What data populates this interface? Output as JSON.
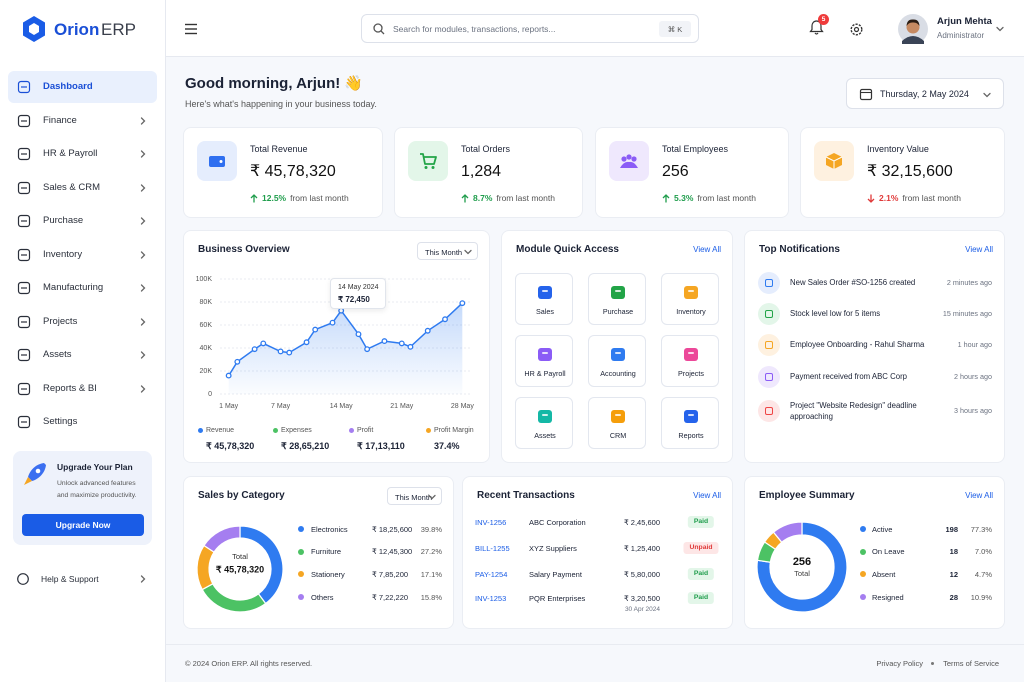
{
  "brand": {
    "name": "Orion",
    "suffix": "ERP"
  },
  "nav": [
    {
      "label": "Dashboard",
      "active": true,
      "expandable": false
    },
    {
      "label": "Finance",
      "active": false,
      "expandable": true
    },
    {
      "label": "HR & Payroll",
      "active": false,
      "expandable": true
    },
    {
      "label": "Sales & CRM",
      "active": false,
      "expandable": true
    },
    {
      "label": "Purchase",
      "active": false,
      "expandable": true
    },
    {
      "label": "Inventory",
      "active": false,
      "expandable": true
    },
    {
      "label": "Manufacturing",
      "active": false,
      "expandable": true
    },
    {
      "label": "Projects",
      "active": false,
      "expandable": true
    },
    {
      "label": "Assets",
      "active": false,
      "expandable": true
    },
    {
      "label": "Reports & BI",
      "active": false,
      "expandable": true
    },
    {
      "label": "Settings",
      "active": false,
      "expandable": false
    }
  ],
  "upgrade": {
    "title": "Upgrade Your Plan",
    "text": "Unlock advanced features and maximize productivity.",
    "button": "Upgrade Now"
  },
  "help": {
    "label": "Help & Support"
  },
  "search": {
    "placeholder": "Search for modules, transactions, reports...",
    "shortcut": "⌘ K"
  },
  "notification_count": 5,
  "user": {
    "name": "Arjun Mehta",
    "role": "Administrator"
  },
  "greeting": {
    "title": "Good morning, Arjun! 👋",
    "subtitle": "Here's what's happening in your business today."
  },
  "date": "Thursday, 2 May 2024",
  "kpis": [
    {
      "label": "Total Revenue",
      "value": "₹ 45,78,320",
      "change": "12.5%",
      "change_text": "from last month",
      "trend": "up",
      "color": "#1f9d4c"
    },
    {
      "label": "Total Orders",
      "value": "1,284",
      "change": "8.7%",
      "change_text": "from last month",
      "trend": "up",
      "color": "#1f9d4c"
    },
    {
      "label": "Total Employees",
      "value": "256",
      "change": "5.3%",
      "change_text": "from last month",
      "trend": "up",
      "color": "#1f9d4c"
    },
    {
      "label": "Inventory Value",
      "value": "₹ 32,15,600",
      "change": "2.1%",
      "change_text": "from last month",
      "trend": "down",
      "color": "#e03a3a"
    }
  ],
  "modules": {
    "title": "Module Quick Access",
    "link": "View All",
    "items": [
      "Sales",
      "Purchase",
      "Inventory",
      "HR & Payroll",
      "Accounting",
      "Projects",
      "Assets",
      "CRM",
      "Reports"
    ]
  },
  "notifications": {
    "title": "Top Notifications",
    "link": "View All",
    "items": [
      {
        "text": "New Sales Order #SO-1256 created",
        "time": "2 minutes ago"
      },
      {
        "text": "Stock level low for 5 items",
        "time": "15 minutes ago"
      },
      {
        "text": "Employee Onboarding - Rahul Sharma",
        "time": "1 hour ago"
      },
      {
        "text": "Payment received from ABC Corp",
        "time": "2 hours ago"
      },
      {
        "text": "Project \"Website Redesign\" deadline approaching",
        "time": "3 hours ago"
      }
    ]
  },
  "transactions": {
    "title": "Recent Transactions",
    "link": "View All",
    "rows": [
      {
        "id": "INV-1256",
        "party": "ABC Corporation",
        "amount": "₹ 2,45,600",
        "status": "Paid",
        "status_color": "#1f9d4c",
        "status_bg": "#e3f6e9"
      },
      {
        "id": "BILL-1255",
        "party": "XYZ Suppliers",
        "amount": "₹ 1,25,400",
        "status": "Unpaid",
        "status_color": "#e03a3a",
        "status_bg": "#fde6e6"
      },
      {
        "id": "PAY-1254",
        "party": "Salary Payment",
        "amount": "₹ 5,80,000",
        "status": "Paid",
        "status_color": "#1f9d4c",
        "status_bg": "#e3f6e9"
      },
      {
        "id": "INV-1253",
        "party": "PQR Enterprises",
        "amount": "₹ 3,20,500",
        "date": "30 Apr 2024",
        "status": "Paid",
        "status_color": "#1f9d4c",
        "status_bg": "#e3f6e9"
      }
    ]
  },
  "footer": {
    "copyright": "© 2024 Orion ERP. All rights reserved.",
    "links": [
      "Privacy Policy",
      "Terms of Service"
    ]
  },
  "chart_data": [
    {
      "type": "line",
      "title": "Business Overview",
      "period": "This Month",
      "color": "#2f7bf0",
      "x": [
        1,
        2,
        4,
        5,
        7,
        8,
        10,
        11,
        13,
        14,
        16,
        17,
        19,
        21,
        22,
        24,
        26,
        28
      ],
      "values": [
        16000,
        28000,
        39000,
        44000,
        37000,
        36000,
        45000,
        56000,
        62000,
        72450,
        52000,
        39000,
        46000,
        44000,
        41000,
        55000,
        65000,
        79000
      ],
      "xlim": [
        0,
        29
      ],
      "xticks": [
        {
          "value": 1,
          "label": "1 May"
        },
        {
          "value": 7,
          "label": "7 May"
        },
        {
          "value": 14,
          "label": "14 May"
        },
        {
          "value": 21,
          "label": "21 May"
        },
        {
          "value": 28,
          "label": "28 May"
        }
      ],
      "ylim": [
        0,
        100000
      ],
      "yticks": [
        0,
        {
          "value": 20000,
          "label": "20K"
        },
        {
          "value": 40000,
          "label": "40K"
        },
        {
          "value": 60000,
          "label": "60K"
        },
        {
          "value": 80000,
          "label": "80K"
        },
        {
          "value": 100000,
          "label": "100K"
        }
      ],
      "grid": true,
      "tooltip": {
        "title": "14 May 2024",
        "label": "₹ 72,450"
      },
      "summary": [
        {
          "name": "Revenue",
          "color": "#2f7bf0",
          "value": "₹ 45,78,320"
        },
        {
          "name": "Expenses",
          "color": "#4cc264",
          "value": "₹ 28,65,210"
        },
        {
          "name": "Profit",
          "color": "#a57ef0",
          "value": "₹ 17,13,110"
        },
        {
          "name": "Profit Margin",
          "color": "#f5a623",
          "value": "37.4%"
        }
      ]
    },
    {
      "type": "pie",
      "title": "Sales by Category",
      "period": "This Month",
      "center_label": "Total",
      "center_value": "₹ 45,78,320",
      "categories": [
        "Electronics",
        "Furniture",
        "Stationery",
        "Others"
      ],
      "values": [
        39.8,
        27.2,
        17.1,
        15.8
      ],
      "value_labels": [
        "39.8%",
        "27.2%",
        "17.1%",
        "15.8%"
      ],
      "amounts": [
        "₹ 18,25,600",
        "₹ 12,45,300",
        "₹ 7,85,200",
        "₹ 7,22,220"
      ],
      "colors": [
        "#2f7bf0",
        "#4cc264",
        "#f5a623",
        "#a57ef0"
      ]
    },
    {
      "type": "pie",
      "title": "Employee Summary",
      "link": "View All",
      "center_value": "256",
      "center_label": "Total",
      "categories": [
        "Active",
        "On Leave",
        "Absent",
        "Resigned"
      ],
      "values": [
        77.3,
        7.0,
        4.7,
        10.9
      ],
      "value_labels": [
        "77.3%",
        "7.0%",
        "4.7%",
        "10.9%"
      ],
      "counts": [
        198,
        18,
        12,
        28
      ],
      "colors": [
        "#2f7bf0",
        "#4cc264",
        "#f5a623",
        "#a57ef0"
      ]
    }
  ]
}
